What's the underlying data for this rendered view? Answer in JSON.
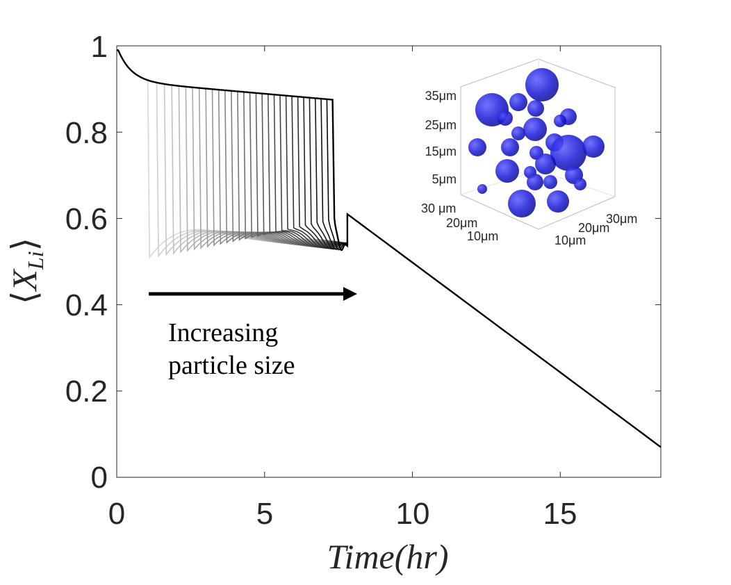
{
  "chart_data": {
    "type": "line",
    "title": "",
    "xlabel": "Time(hr)",
    "ylabel": "⟨X_Li⟩",
    "ylabel_main": "X",
    "ylabel_sub": "Li",
    "xlim": [
      0,
      18.4
    ],
    "ylim": [
      0,
      1
    ],
    "xticks": [
      "0",
      "5",
      "10",
      "15"
    ],
    "yticks": [
      "0",
      "0.2",
      "0.4",
      "0.6",
      "0.8",
      "1"
    ],
    "grid": false,
    "legend": "none",
    "annotation": {
      "line1": "Increasing",
      "line2": "particle size",
      "arrow": "right"
    },
    "series_family": {
      "count": 30,
      "color_range": [
        "#d6d6d6",
        "#000000"
      ],
      "drop_time_range_hr": [
        1.05,
        7.3
      ],
      "min_after_drop_range": [
        0.51,
        0.6
      ],
      "shared_linear_tail": [
        [
          7.8,
          0.61
        ],
        [
          18.4,
          0.07
        ]
      ]
    },
    "series": [
      {
        "x": [
          0,
          0.5,
          1.05,
          1.1,
          1.3,
          2.5,
          5,
          7.8,
          10,
          12.5,
          15,
          18.4
        ],
        "y": [
          0.99,
          0.96,
          0.905,
          0.51,
          0.55,
          0.57,
          0.61,
          0.61,
          0.49,
          0.36,
          0.23,
          0.07
        ]
      },
      {
        "x": [
          0,
          0.5,
          1.5,
          3.7,
          3.75,
          4,
          5,
          7.8,
          10,
          12.5,
          15,
          18.4
        ],
        "y": [
          0.99,
          0.96,
          0.935,
          0.91,
          0.6,
          0.58,
          0.595,
          0.61,
          0.49,
          0.36,
          0.23,
          0.07
        ]
      },
      {
        "x": [
          0,
          0.5,
          1.5,
          5,
          7.25,
          7.3,
          7.5,
          7.8,
          10,
          12.5,
          15,
          18.4
        ],
        "y": [
          0.99,
          0.96,
          0.935,
          0.91,
          0.905,
          0.61,
          0.6,
          0.61,
          0.49,
          0.36,
          0.23,
          0.07
        ]
      }
    ],
    "inset": {
      "type": "3d-scatter",
      "z_ticks": [
        "35μm",
        "25μm",
        "15μm",
        "5μm"
      ],
      "y_ticks": [
        "30 μm",
        "20μm",
        "10μm"
      ],
      "x_ticks": [
        "10μm",
        "20μm",
        "30μm"
      ],
      "sphere_color": "#1a1ad6"
    }
  }
}
